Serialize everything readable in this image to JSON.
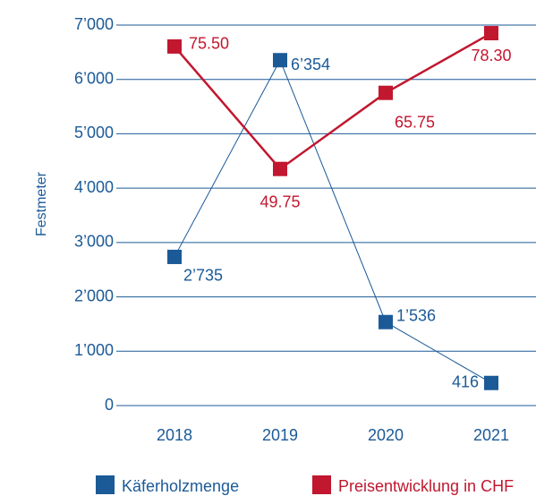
{
  "chart_data": {
    "type": "line",
    "y_axis_label": "Festmeter",
    "categories": [
      "2018",
      "2019",
      "2020",
      "2021"
    ],
    "series": [
      {
        "name": "Käferholzmenge",
        "color": "#1b5a97",
        "values": [
          2735,
          6354,
          1536,
          416
        ],
        "value_labels": [
          "2’735",
          "6’354",
          "1’536",
          "416"
        ]
      },
      {
        "name": "Preisentwicklung in CHF",
        "color": "#c1172f",
        "axis": "y2",
        "values": [
          75.5,
          49.75,
          65.75,
          78.3
        ],
        "value_labels": [
          "75.50",
          "49.75",
          "65.75",
          "78.30"
        ]
      }
    ],
    "ylim": [
      0,
      7000
    ],
    "yticks": [
      {
        "value": 0,
        "label": "0"
      },
      {
        "value": 1000,
        "label": "1’000"
      },
      {
        "value": 2000,
        "label": "2’000"
      },
      {
        "value": 3000,
        "label": "3’000"
      },
      {
        "value": 4000,
        "label": "4’000"
      },
      {
        "value": 5000,
        "label": "5’000"
      },
      {
        "value": 6000,
        "label": "6’000"
      },
      {
        "value": 7000,
        "label": "7’000"
      }
    ],
    "y2lim": [
      0,
      80
    ],
    "grid": true
  }
}
